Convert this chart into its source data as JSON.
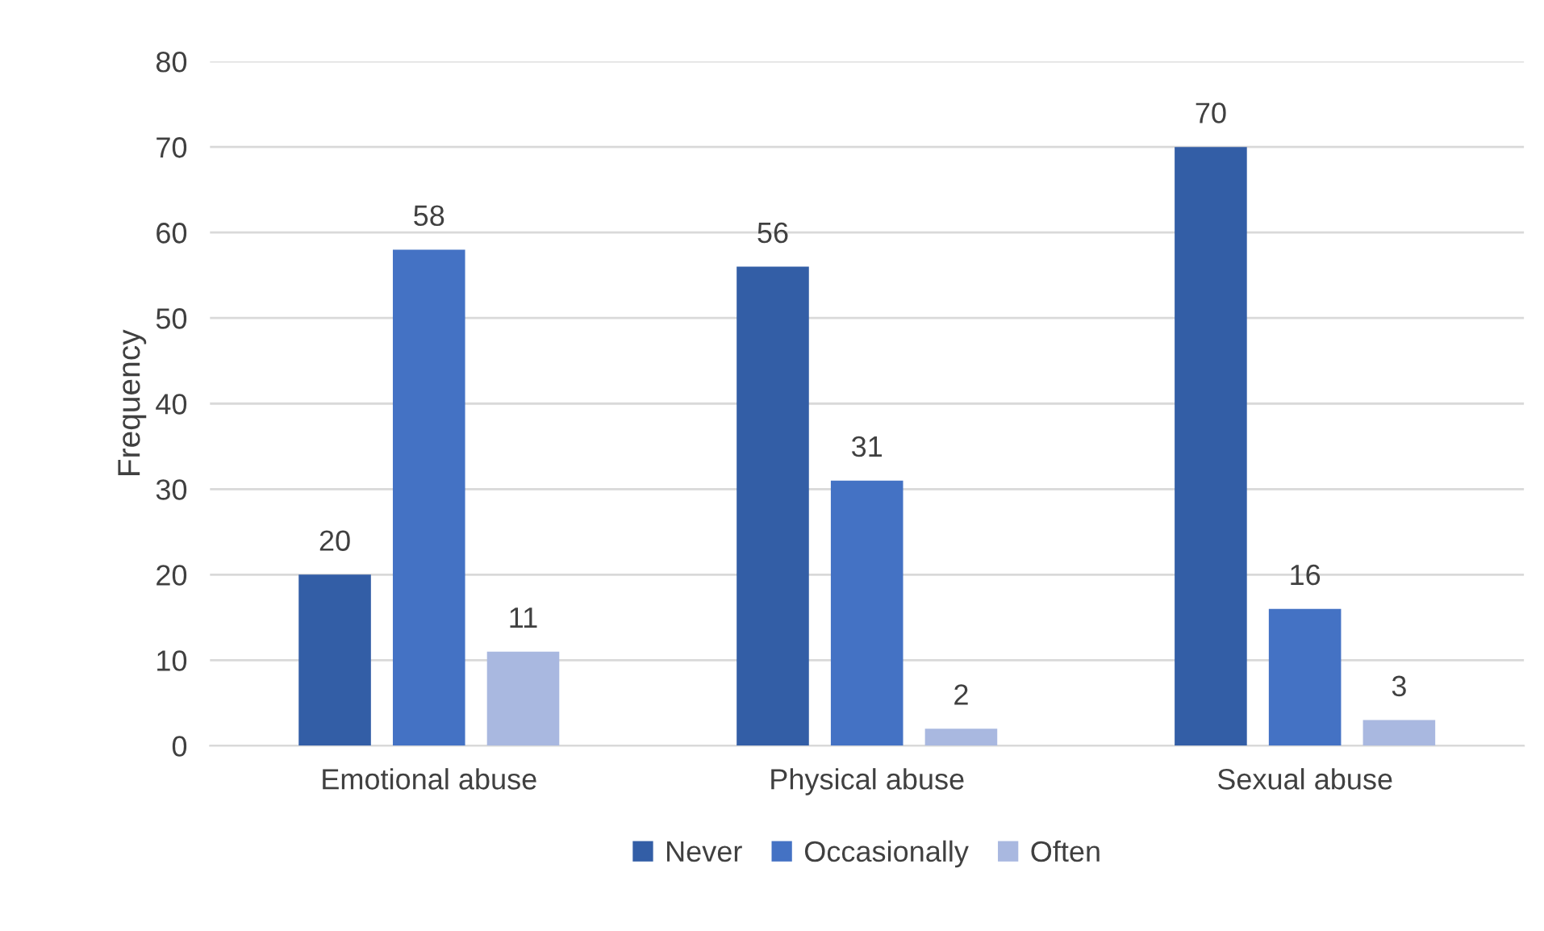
{
  "chart_data": {
    "type": "bar",
    "ylabel": "Frequency",
    "categories": [
      "Emotional abuse",
      "Physical abuse",
      "Sexual abuse"
    ],
    "series": [
      {
        "name": "Never",
        "color": "#335ea6",
        "values": [
          20,
          56,
          70
        ]
      },
      {
        "name": "Occasionally",
        "color": "#4472c4",
        "values": [
          58,
          31,
          16
        ]
      },
      {
        "name": "Often",
        "color": "#a9b8e0",
        "values": [
          11,
          2,
          3
        ]
      }
    ],
    "ylim": [
      0,
      80
    ],
    "yticks": [
      0,
      10,
      20,
      30,
      40,
      50,
      60,
      70,
      80
    ],
    "grid": "y",
    "legend": "bottom",
    "data_labels": true
  }
}
